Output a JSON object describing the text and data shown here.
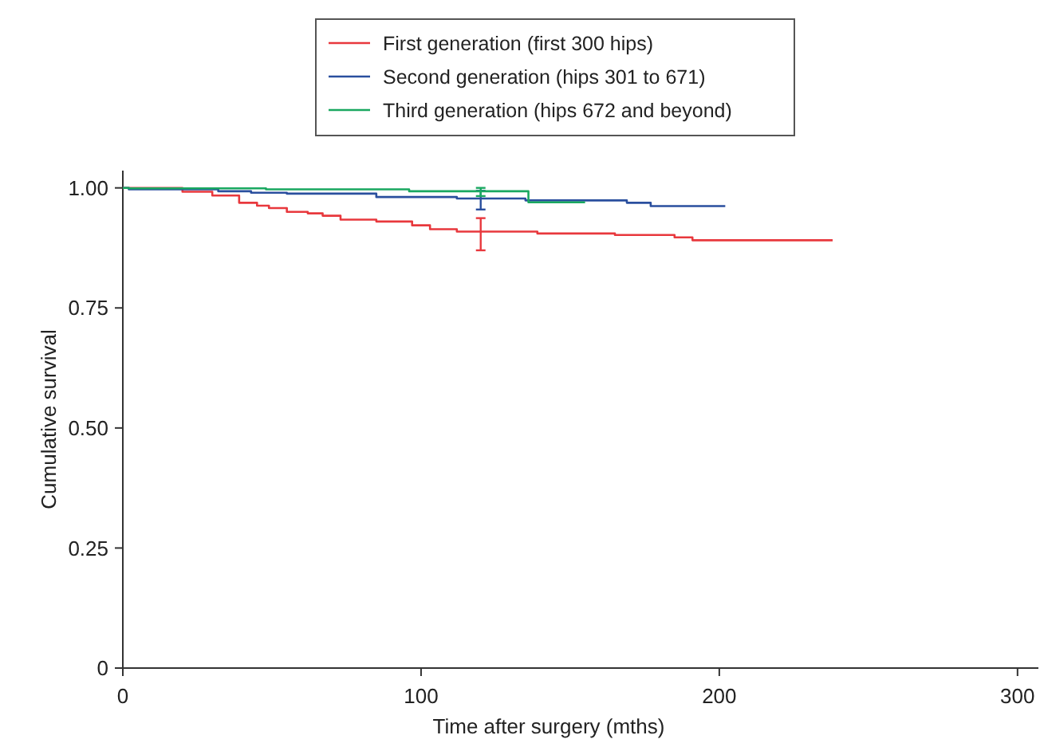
{
  "chart_data": {
    "type": "step",
    "xlabel": "Time after surgery (mths)",
    "ylabel": "Cumulative survival",
    "xlim": [
      0,
      307
    ],
    "xticks": [
      0,
      100,
      200,
      300
    ],
    "ylim": [
      0,
      1.036
    ],
    "yticks": [
      {
        "value": 0,
        "label": "0"
      },
      {
        "value": 0.25,
        "label": "0.25"
      },
      {
        "value": 0.5,
        "label": "0.50"
      },
      {
        "value": 0.75,
        "label": "0.75"
      },
      {
        "value": 1,
        "label": "1.00"
      }
    ],
    "grid": false,
    "legend": "top",
    "marker": "none",
    "line_style": "solid",
    "series": [
      {
        "name": "First generation (first 300 hips)",
        "color": "#e8383d",
        "x": [
          0,
          20,
          30,
          39,
          45,
          49,
          55,
          62,
          67,
          73,
          85,
          97,
          103,
          112,
          120,
          139,
          165,
          185,
          191,
          238
        ],
        "values": [
          1,
          0.992,
          0.984,
          0.969,
          0.963,
          0.958,
          0.95,
          0.947,
          0.942,
          0.934,
          0.93,
          0.922,
          0.914,
          0.909,
          0.909,
          0.905,
          0.902,
          0.897,
          0.891,
          0.891
        ],
        "errors": [
          null,
          null,
          null,
          null,
          null,
          null,
          null,
          null,
          null,
          null,
          null,
          null,
          null,
          null,
          [
            0.87,
            0.937
          ],
          null,
          null,
          null,
          null,
          null
        ]
      },
      {
        "name": "Second generation (hips 301 to 671)",
        "color": "#2a4f9e",
        "x": [
          0,
          2,
          32,
          43,
          55,
          85,
          112,
          120,
          135,
          169,
          177,
          202
        ],
        "values": [
          1,
          0.997,
          0.993,
          0.99,
          0.988,
          0.981,
          0.978,
          0.978,
          0.974,
          0.969,
          0.962,
          0.962
        ],
        "errors": [
          null,
          null,
          null,
          null,
          null,
          null,
          null,
          [
            0.955,
            0.994
          ],
          null,
          null,
          null,
          null
        ]
      },
      {
        "name": "Third generation (hips 672 and beyond)",
        "color": "#1aa860",
        "x": [
          0,
          2,
          48,
          96,
          120,
          136,
          155
        ],
        "values": [
          1,
          0.999,
          0.997,
          0.993,
          0.993,
          0.97,
          0.97
        ],
        "errors": [
          null,
          null,
          null,
          null,
          [
            0.983,
            1
          ],
          null,
          null
        ]
      }
    ]
  }
}
